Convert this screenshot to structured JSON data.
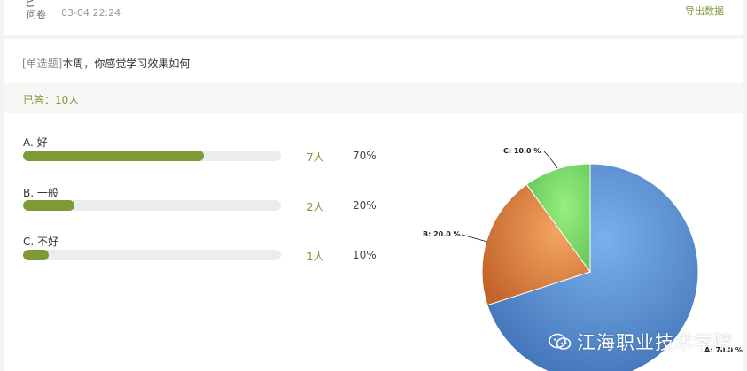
{
  "header": {
    "title_fragment": "ピ",
    "type_label": "问卷",
    "timestamp": "03-04 22:24",
    "export_label": "导出数据"
  },
  "question": {
    "type_tag": "[单选题]",
    "text": "本周，你感觉学习效果如何"
  },
  "answered": {
    "text": "已答：10人"
  },
  "options": [
    {
      "label": "A. 好",
      "count_text": "7人",
      "percent_text": "70%",
      "fraction": 0.7
    },
    {
      "label": "B. 一般",
      "count_text": "2人",
      "percent_text": "20%",
      "fraction": 0.2
    },
    {
      "label": "C. 不好",
      "count_text": "1人",
      "percent_text": "10%",
      "fraction": 0.1
    }
  ],
  "colors": {
    "accent": "#7e9a3a",
    "bar_fill": "#7e9a34",
    "slice_a": "#4a80c4",
    "slice_b": "#df7f35",
    "slice_c": "#7ad466"
  },
  "chart_data": {
    "type": "pie",
    "categories": [
      "A",
      "B",
      "C"
    ],
    "values": [
      70.0,
      20.0,
      10.0
    ],
    "data_labels": [
      "A: 70.0 %",
      "B: 20.0 %",
      "C: 10.0 %"
    ]
  },
  "watermark": {
    "text": "江海职业技术学院",
    "icon": "wechat-icon"
  }
}
